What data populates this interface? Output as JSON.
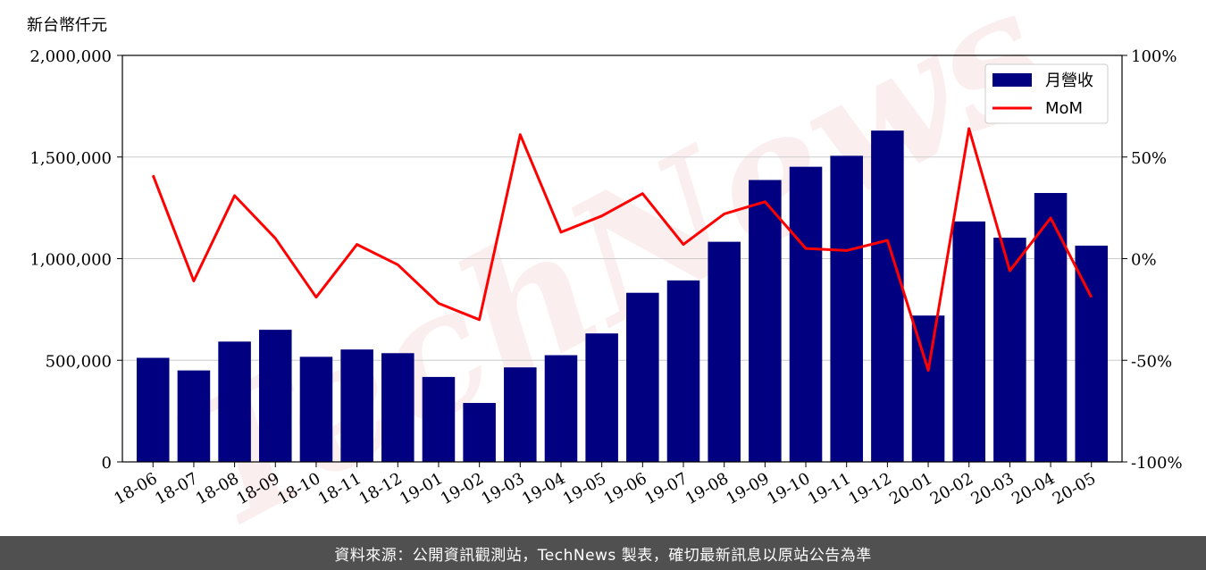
{
  "footer": {
    "text": "資料來源：公開資訊觀測站，TechNews 製表，確切最新訊息以原站公告為準"
  },
  "watermark": {
    "text": "TechNews"
  },
  "chart_data": {
    "type": "bar",
    "categories": [
      "18-06",
      "18-07",
      "18-08",
      "18-09",
      "18-10",
      "18-11",
      "18-12",
      "19-01",
      "19-02",
      "19-03",
      "19-04",
      "19-05",
      "19-06",
      "19-07",
      "19-08",
      "19-09",
      "19-10",
      "19-11",
      "19-12",
      "20-01",
      "20-02",
      "20-03",
      "20-04",
      "20-05"
    ],
    "series": [
      {
        "name": "月營收",
        "type": "bar",
        "axis": "left",
        "color": "#000080",
        "values": [
          512000,
          450000,
          592000,
          650000,
          517000,
          553000,
          535000,
          418000,
          290000,
          465000,
          525000,
          632000,
          832000,
          893000,
          1083000,
          1387000,
          1452000,
          1506000,
          1630000,
          720000,
          1183000,
          1103000,
          1323000,
          1064000
        ]
      },
      {
        "name": "MoM",
        "type": "line",
        "axis": "right",
        "color": "#ff0000",
        "values": [
          41,
          -11,
          31,
          10,
          -19,
          7,
          -3,
          -22,
          -30,
          61,
          13,
          21,
          32,
          7,
          22,
          28,
          5,
          4,
          9,
          -55,
          64,
          -6,
          20,
          -19
        ]
      }
    ],
    "y_left": {
      "label": "新台幣仟元",
      "ylim": [
        0,
        2000000
      ],
      "ticks": [
        "0",
        "500,000",
        "1,000,000",
        "1,500,000",
        "2,000,000"
      ],
      "tick_values": [
        0,
        500000,
        1000000,
        1500000,
        2000000
      ]
    },
    "y_right": {
      "ylim": [
        -100,
        100
      ],
      "ticks": [
        "-100%",
        "-50%",
        "0%",
        "50%",
        "100%"
      ],
      "tick_values": [
        -100,
        -50,
        0,
        50,
        100
      ]
    },
    "grid": true,
    "legend_position": "top-right"
  }
}
